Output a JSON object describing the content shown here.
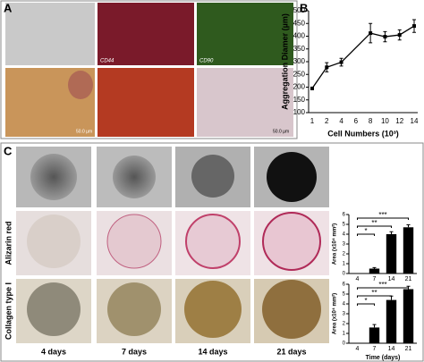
{
  "panel_labels": [
    "A",
    "B",
    "C"
  ],
  "panel_a": {
    "stain_labels": [
      "CD44",
      "CD90"
    ],
    "scale_bars": [
      "50.0 µm",
      "50.0 µm"
    ]
  },
  "panel_c": {
    "row_labels": [
      "Alizarin red",
      "Collagen type I"
    ],
    "day_labels": [
      "4 days",
      "7 days",
      "14 days",
      "21 days"
    ]
  },
  "chart_data": [
    {
      "type": "line",
      "y_label": "Aggregation Diamer (µm)",
      "x_label": "Cell Numbers (10³)",
      "x": [
        1,
        2,
        4,
        8,
        10,
        12,
        14
      ],
      "values": [
        195,
        278,
        298,
        412,
        398,
        405,
        440
      ],
      "errors": [
        5,
        18,
        15,
        38,
        20,
        20,
        25
      ],
      "xticks": [
        1,
        2,
        4,
        6,
        8,
        10,
        12,
        14
      ],
      "ylim": [
        100,
        500
      ],
      "yticks": [
        100,
        150,
        200,
        250,
        300,
        350,
        400,
        450,
        500
      ],
      "color": "#000000"
    },
    {
      "type": "bar",
      "y_label": "Area (x10⁴ mm²)",
      "categories": [
        "4",
        "7",
        "14",
        "21"
      ],
      "values": [
        0,
        0.5,
        4.0,
        4.7
      ],
      "errors": [
        0,
        0.1,
        0.25,
        0.25
      ],
      "ylim": [
        0,
        6
      ],
      "yticks": [
        0,
        1,
        2,
        3,
        4,
        5,
        6
      ],
      "color": "#000000",
      "annotations": [
        "*",
        "**",
        "***"
      ]
    },
    {
      "type": "bar",
      "y_label": "Area (x10⁴ mm²)",
      "x_label": "Time (days)",
      "categories": [
        "4",
        "7",
        "14",
        "21"
      ],
      "values": [
        0,
        1.6,
        4.4,
        5.5
      ],
      "errors": [
        0,
        0.3,
        0.4,
        0.3
      ],
      "ylim": [
        0,
        6
      ],
      "yticks": [
        0,
        1,
        2,
        3,
        4,
        5,
        6
      ],
      "color": "#000000",
      "annotations": [
        "*",
        "**",
        "***"
      ]
    }
  ]
}
